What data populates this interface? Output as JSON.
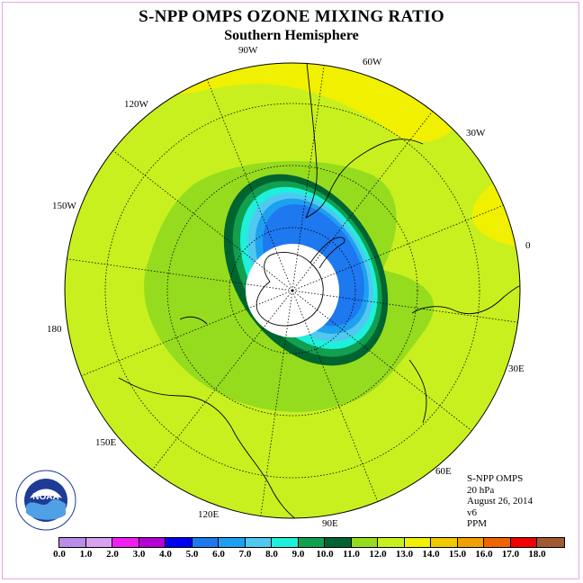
{
  "title": "S-NPP OMPS OZONE MIXING RATIO",
  "subtitle": "Southern Hemisphere",
  "longitude_labels": {
    "lon_90w": "90W",
    "lon_60w": "60W",
    "lon_30w": "30W",
    "lon_0": "0",
    "lon_30e": "30E",
    "lon_60e": "60E",
    "lon_90e": "90E",
    "lon_120e": "120E",
    "lon_150e": "150E",
    "lon_180": "180",
    "lon_150w": "150W",
    "lon_120w": "120W"
  },
  "info": {
    "instrument": "S-NPP OMPS",
    "level": "20 hPa",
    "date": "August 26, 2014",
    "version": "v6",
    "units": "PPM"
  },
  "logo": {
    "text": "NOAA",
    "icon": "noaa-logo"
  },
  "colorbar": {
    "colors": [
      "#b98ee8",
      "#dca0f0",
      "#f01ef0",
      "#b400d2",
      "#0000f0",
      "#1e78f0",
      "#1ea0f0",
      "#50c8f0",
      "#1ef0dc",
      "#10a050",
      "#006430",
      "#96dc1e",
      "#c8f01e",
      "#f0f000",
      "#f0c800",
      "#f0a000",
      "#f06400",
      "#f00000",
      "#a05a32"
    ],
    "ticks": [
      "0.0",
      "1.0",
      "2.0",
      "3.0",
      "4.0",
      "5.0",
      "6.0",
      "7.0",
      "8.0",
      "9.0",
      "10.0",
      "11.0",
      "12.0",
      "13.0",
      "14.0",
      "15.0",
      "16.0",
      "17.0",
      "18.0"
    ]
  },
  "map": {
    "background_color": "#c8f01e",
    "outer_band_color": "#96dc1e",
    "high_color": "#f0f000",
    "inner_colors": [
      "#006430",
      "#10a050",
      "#1ef0dc",
      "#50c8f0",
      "#1ea0f0",
      "#1e78f0"
    ],
    "polar_cap_color": "#ffffff"
  }
}
